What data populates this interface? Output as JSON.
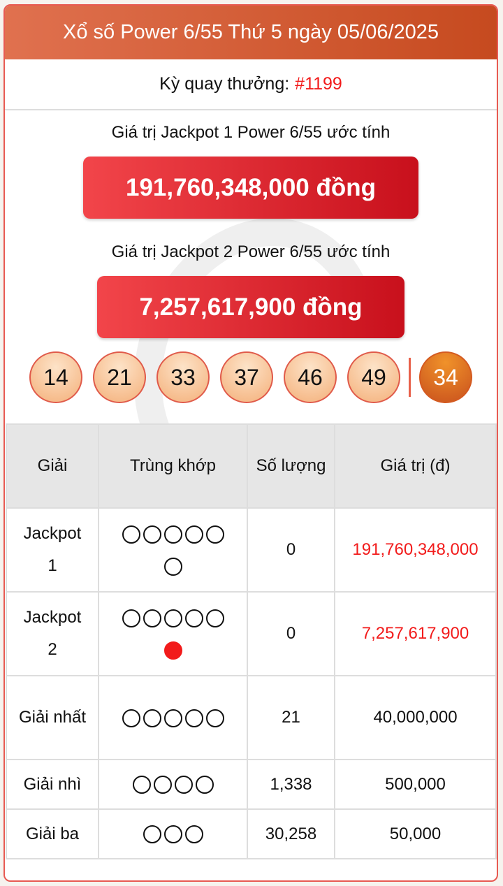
{
  "header": {
    "title": "Xổ số Power 6/55 Thứ 5 ngày 05/06/2025"
  },
  "draw": {
    "label": "Kỳ quay thưởng:",
    "number": "#1199"
  },
  "jackpot1": {
    "label": "Giá trị Jackpot 1 Power 6/55 ước tính",
    "value": "191,760,348,000 đồng"
  },
  "jackpot2": {
    "label": "Giá trị Jackpot 2 Power 6/55 ước tính",
    "value": "7,257,617,900 đồng"
  },
  "balls": [
    "14",
    "21",
    "33",
    "37",
    "46",
    "49"
  ],
  "power_ball": "34",
  "colors": {
    "accent": "#f21b1b",
    "header_from": "#e0714f",
    "header_to": "#c64a1f"
  },
  "table": {
    "headers": [
      "Giải",
      "Trùng khớp",
      "Số lượng",
      "Giá trị (đ)"
    ],
    "rows": [
      {
        "prize": "Jackpot 1",
        "match": 5,
        "extra": "empty",
        "count": "0",
        "value": "191,760,348,000",
        "highlight": true
      },
      {
        "prize": "Jackpot 2",
        "match": 5,
        "extra": "filled",
        "count": "0",
        "value": "7,257,617,900",
        "highlight": true
      },
      {
        "prize": "Giải nhất",
        "match": 5,
        "extra": "none",
        "count": "21",
        "value": "40,000,000",
        "highlight": false
      },
      {
        "prize": "Giải nhì",
        "match": 4,
        "extra": "none",
        "count": "1,338",
        "value": "500,000",
        "highlight": false
      },
      {
        "prize": "Giải ba",
        "match": 3,
        "extra": "none",
        "count": "30,258",
        "value": "50,000",
        "highlight": false
      }
    ]
  }
}
